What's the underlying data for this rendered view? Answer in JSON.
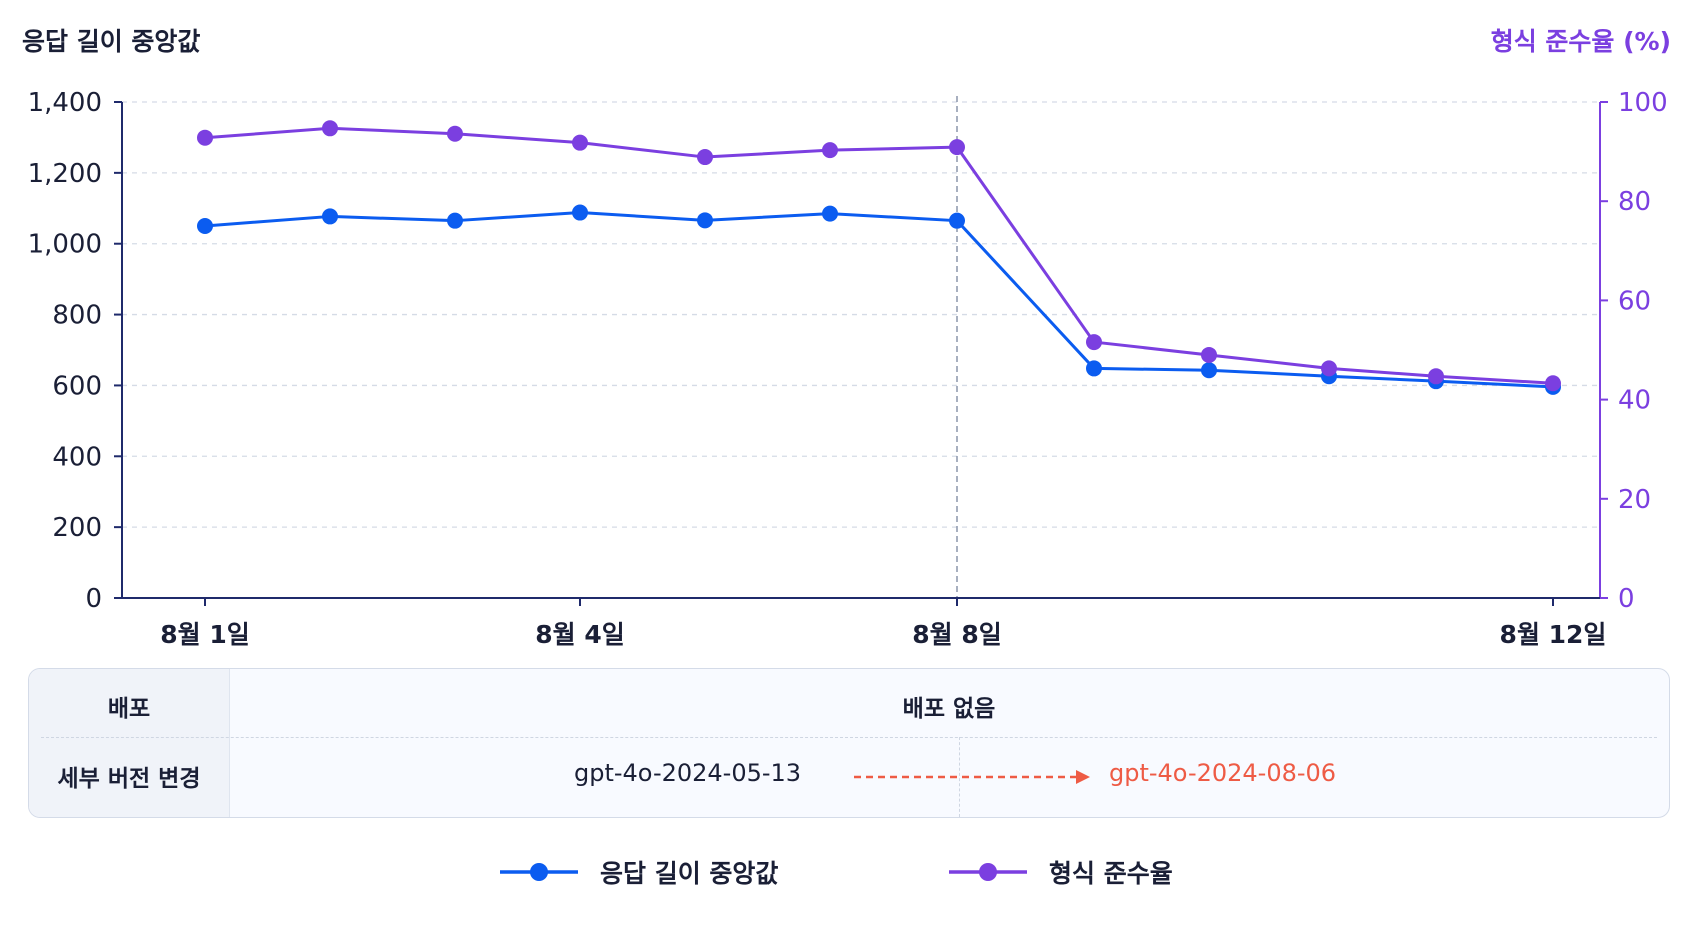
{
  "chart_data": {
    "type": "line",
    "categories": [
      "8월 1일",
      "",
      "",
      "8월 4일",
      "",
      "",
      "8월 8일",
      "",
      "",
      "",
      "",
      "8월 12일"
    ],
    "left_axis": {
      "title": "응답 길이 중앙값",
      "ylim": [
        0,
        1400
      ],
      "ticks": [
        0,
        200,
        400,
        600,
        800,
        1000,
        1200,
        1400
      ],
      "tick_labels": [
        "0",
        "200",
        "400",
        "600",
        "800",
        "1,000",
        "1,200",
        "1,400"
      ]
    },
    "right_axis": {
      "title": "형식 준수율 (%)",
      "ylim": [
        0,
        100
      ],
      "ticks": [
        0,
        20,
        40,
        60,
        80,
        100
      ],
      "tick_labels": [
        "0",
        "20",
        "40",
        "60",
        "80",
        "100"
      ]
    },
    "x_tick_labels": [
      "8월 1일",
      "8월 4일",
      "8월 8일",
      "8월 12일"
    ],
    "series": [
      {
        "name": "응답 길이 중앙값",
        "axis": "left",
        "color": "#0b5cf0",
        "values": [
          1050,
          1077,
          1065,
          1088,
          1066,
          1085,
          1065,
          648,
          643,
          626,
          612,
          596
        ]
      },
      {
        "name": "형식 준수율",
        "axis": "right",
        "color": "#7b3fe0",
        "values": [
          92.8,
          94.7,
          93.6,
          91.8,
          88.9,
          90.3,
          90.9,
          51.6,
          49.0,
          46.3,
          44.7,
          43.3
        ]
      }
    ],
    "marker_line_at": "8월 8일",
    "grid": true,
    "legend_position": "bottom"
  },
  "panel": {
    "row1_label": "배포",
    "row1_value": "배포 없음",
    "row2_label": "세부 버전 변경",
    "version_old": "gpt-4o-2024-05-13",
    "version_new": "gpt-4o-2024-08-06"
  },
  "colors": {
    "left_series": "#0b5cf0",
    "right_series": "#7b3fe0",
    "new_version": "#ee5b45"
  }
}
